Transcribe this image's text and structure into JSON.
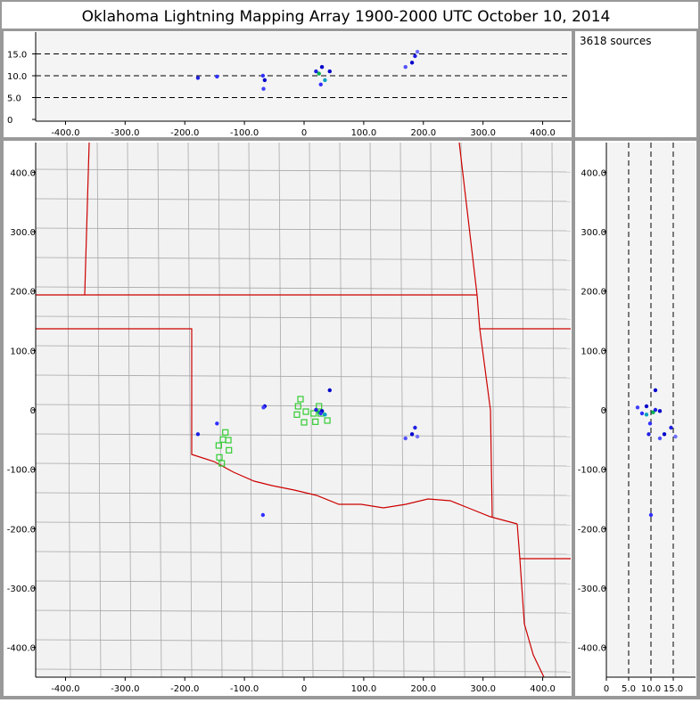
{
  "title": "Oklahoma Lightning Mapping Array   1900-2000 UTC  October 10, 2014",
  "annotation": "3618 sources",
  "chart_data": {
    "type": "scatter",
    "xlim": [
      -450,
      447
    ],
    "ylim": [
      -450,
      450
    ],
    "zlim": [
      0,
      20
    ],
    "xticks": [
      {
        "value": -400,
        "label": "-400.0"
      },
      {
        "value": -300,
        "label": "-300.0"
      },
      {
        "value": -200,
        "label": "-200.0"
      },
      {
        "value": -100,
        "label": "-100.0"
      },
      0,
      {
        "value": 100,
        "label": "100.0"
      },
      {
        "value": 200,
        "label": "200.0"
      },
      {
        "value": 300,
        "label": "300.0"
      },
      {
        "value": 400,
        "label": "400.0"
      }
    ],
    "yticks": [
      {
        "value": -400,
        "label": "-400.0"
      },
      {
        "value": -300,
        "label": "-300.0"
      },
      {
        "value": -200,
        "label": "-200.0"
      },
      {
        "value": -100,
        "label": "-100.0"
      },
      0,
      {
        "value": 100,
        "label": "100.0"
      },
      {
        "value": 200,
        "label": "200.0"
      },
      {
        "value": 300,
        "label": "300.0"
      },
      {
        "value": 400,
        "label": "400.0"
      }
    ],
    "zticks": [
      0,
      {
        "value": 5,
        "label": "5.0"
      },
      {
        "value": 10,
        "label": "10.0"
      },
      {
        "value": 15,
        "label": "15.0"
      }
    ],
    "grid_style": "dashed",
    "sources": {
      "x": [
        25,
        30,
        35,
        20,
        28,
        -66,
        -68,
        -178,
        -146,
        181,
        186,
        170,
        190,
        43,
        -69
      ],
      "y": [
        -4,
        -2,
        -8,
        0,
        -6,
        6,
        4,
        -41,
        -23,
        -41,
        -30,
        -48,
        -45,
        33,
        -177
      ],
      "z": [
        10.5,
        12,
        9,
        11,
        8,
        9,
        7,
        9.5,
        9.8,
        13,
        14.5,
        12,
        15.5,
        11,
        10
      ],
      "colors": [
        "#00b050",
        "#0000cc",
        "#00a0c0",
        "#2020e0",
        "#3030ff",
        "#0000cc",
        "#4040ff",
        "#2020e0",
        "#3030ff",
        "#0000cc",
        "#2020e0",
        "#5050ff",
        "#7070ff",
        "#0000cc",
        "#3030ff"
      ]
    },
    "stations": {
      "color": "#33cc33",
      "x": [
        -6,
        -10,
        -12,
        3,
        0,
        16,
        25,
        28,
        39,
        19,
        -132,
        -136,
        -127,
        -143,
        -126,
        -142,
        -138
      ],
      "y": [
        18,
        6,
        -8,
        -3,
        -21,
        -6,
        6,
        -6,
        -18,
        -20,
        -38,
        -50,
        -51,
        -60,
        -68,
        -80,
        -90
      ]
    }
  }
}
